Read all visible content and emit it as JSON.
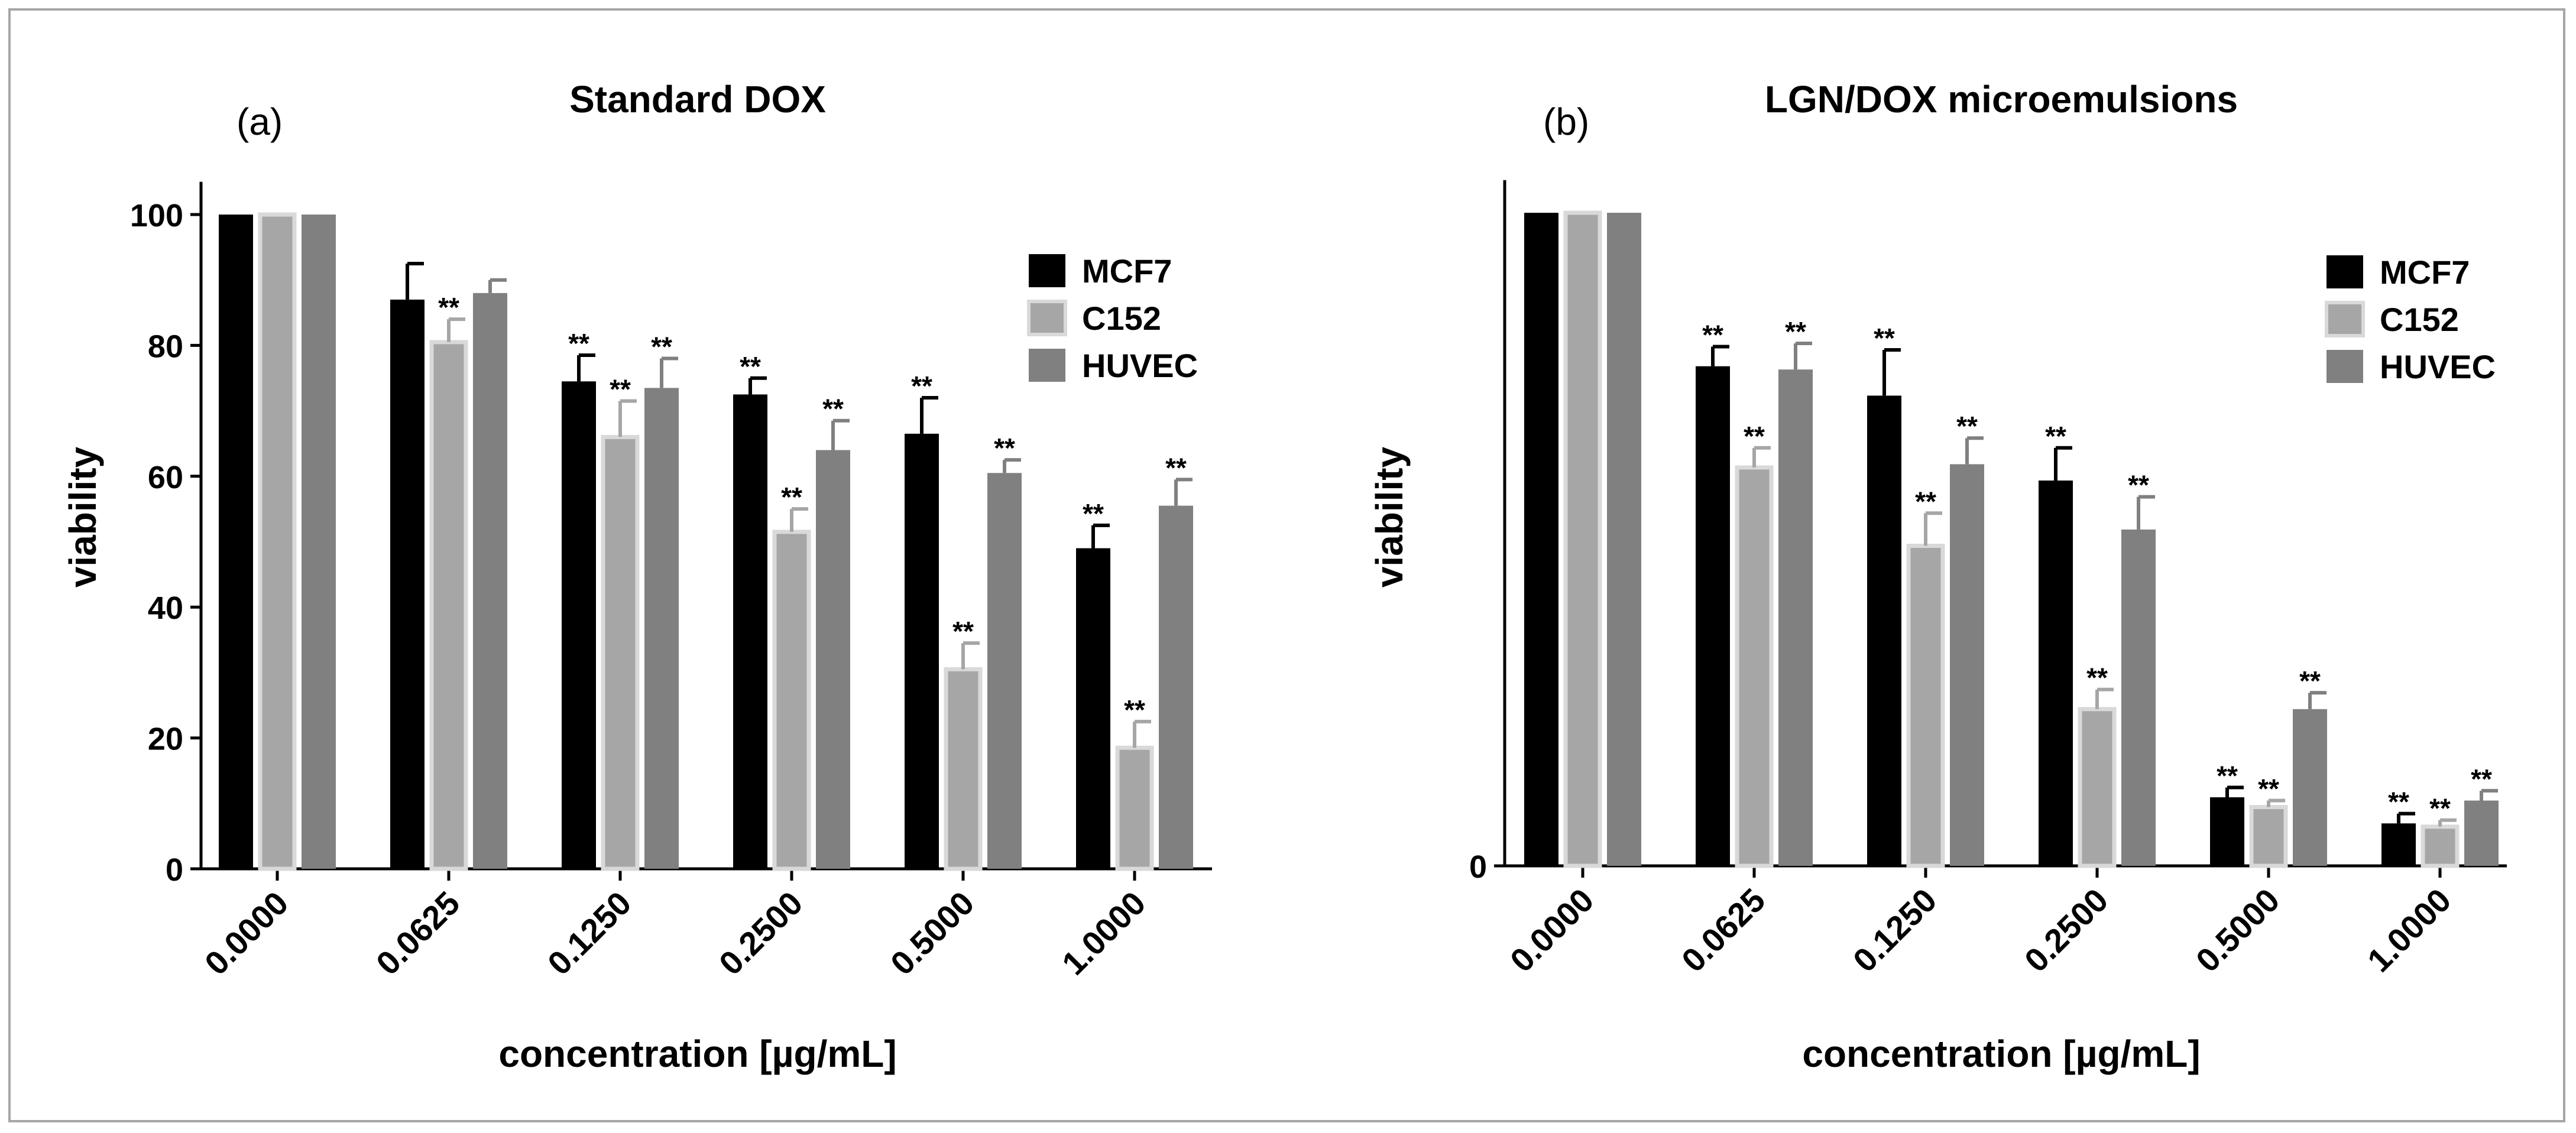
{
  "chart_data": [
    {
      "type": "bar",
      "panel_label": "(a)",
      "title": "Standard DOX",
      "xlabel": "concentration [µg/mL]",
      "ylabel": "viability",
      "ylim": [
        0,
        105
      ],
      "yticks": [
        "0",
        "20",
        "40",
        "60",
        "80",
        "100"
      ],
      "categories": [
        "0.0000",
        "0.0625",
        "0.1250",
        "0.2500",
        "0.5000",
        "1.0000"
      ],
      "legend_position": "top-right",
      "series": [
        {
          "name": "MCF7",
          "color": "#000000",
          "values": [
            100,
            87,
            74.5,
            72.5,
            66.5,
            49
          ],
          "errors": [
            0,
            5.5,
            4,
            2.5,
            5.5,
            3.5
          ],
          "sig": [
            "",
            "",
            "**",
            "**",
            "**",
            "**"
          ]
        },
        {
          "name": "C152",
          "color": "#a6a6a6",
          "values": [
            100,
            80.5,
            66,
            51.5,
            30.5,
            18.5
          ],
          "errors": [
            0,
            3.5,
            5.5,
            3.5,
            4,
            4
          ],
          "sig": [
            "",
            "**",
            "**",
            "**",
            "**",
            "**"
          ]
        },
        {
          "name": "HUVEC",
          "color": "#808080",
          "values": [
            100,
            88,
            73.5,
            64,
            60.5,
            55.5
          ],
          "errors": [
            0,
            2,
            4.5,
            4.5,
            2,
            4
          ],
          "sig": [
            "",
            "",
            "**",
            "**",
            "**",
            "**"
          ]
        }
      ]
    },
    {
      "type": "bar",
      "panel_label": "(b)",
      "title": "LGN/DOX microemulsions",
      "xlabel": "concentration [µg/mL]",
      "ylabel": "viability",
      "ylim": [
        0,
        105
      ],
      "yticks": [
        "0"
      ],
      "categories": [
        "0.0000",
        "0.0625",
        "0.1250",
        "0.2500",
        "0.5000",
        "1.0000"
      ],
      "legend_position": "top-right",
      "series": [
        {
          "name": "MCF7",
          "color": "#000000",
          "values": [
            100,
            76.5,
            72,
            59,
            10.5,
            6.5
          ],
          "errors": [
            0,
            3,
            7,
            5,
            1.5,
            1.5
          ],
          "sig": [
            "",
            "**",
            "**",
            "**",
            "**",
            "**"
          ]
        },
        {
          "name": "C152",
          "color": "#a6a6a6",
          "values": [
            100,
            61,
            49,
            24,
            9,
            6
          ],
          "errors": [
            0,
            3,
            5,
            3,
            1,
            1
          ],
          "sig": [
            "",
            "**",
            "**",
            "**",
            "**",
            "**"
          ]
        },
        {
          "name": "HUVEC",
          "color": "#808080",
          "values": [
            100,
            76,
            61.5,
            51.5,
            24,
            10
          ],
          "errors": [
            0,
            4,
            4,
            5,
            2.5,
            1.5
          ],
          "sig": [
            "",
            "**",
            "**",
            "**",
            "**",
            "**"
          ]
        }
      ]
    }
  ]
}
